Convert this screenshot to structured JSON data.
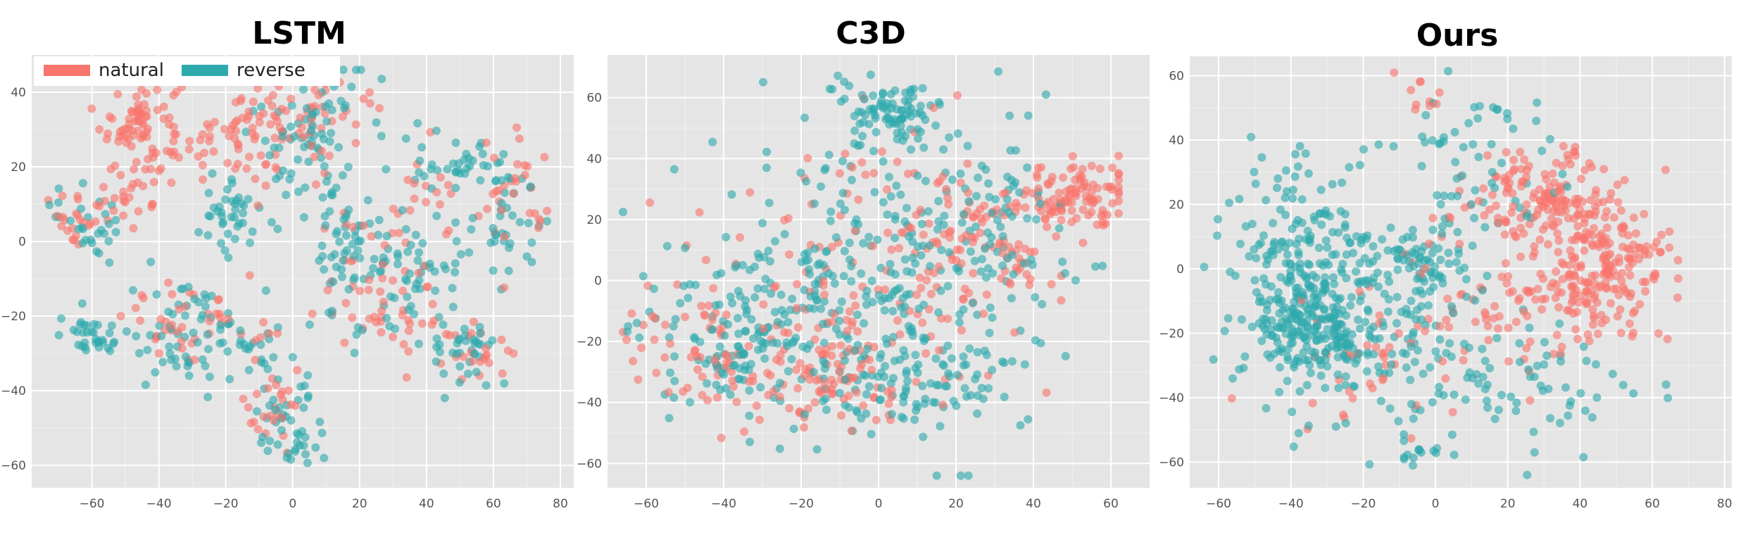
{
  "colors": {
    "natural": "#F8766D",
    "reverse": "#2EAAAD",
    "panel_background": "#E5E5E5",
    "grid": "#FFFFFF"
  },
  "legend": {
    "placement": "top-left of first panel",
    "entries": [
      {
        "label": "natural",
        "color": "#F8766D"
      },
      {
        "label": "reverse",
        "color": "#2EAAAD"
      }
    ]
  },
  "chart_data": [
    {
      "type": "scatter",
      "title": "LSTM",
      "xlabel": "",
      "ylabel": "",
      "xlim": [
        -78,
        84
      ],
      "ylim": [
        -66,
        50
      ],
      "xticks": [
        -60,
        -40,
        -20,
        0,
        20,
        40,
        60,
        80
      ],
      "yticks": [
        -60,
        -40,
        -20,
        0,
        20,
        40
      ],
      "grid": true,
      "series": [
        {
          "name": "natural",
          "color": "#F8766D",
          "clusters": [
            {
              "cx": -45,
              "cy": 32,
              "sx": 6,
              "sy": 6,
              "n": 70
            },
            {
              "cx": -15,
              "cy": 28,
              "sx": 10,
              "sy": 6,
              "n": 70
            },
            {
              "cx": 5,
              "cy": 38,
              "sx": 10,
              "sy": 6,
              "n": 50
            },
            {
              "cx": -62,
              "cy": 5,
              "sx": 6,
              "sy": 4,
              "n": 25
            },
            {
              "cx": -48,
              "cy": 15,
              "sx": 5,
              "sy": 5,
              "n": 30
            },
            {
              "cx": -30,
              "cy": -22,
              "sx": 10,
              "sy": 6,
              "n": 45
            },
            {
              "cx": 30,
              "cy": -12,
              "sx": 12,
              "sy": 10,
              "n": 60
            },
            {
              "cx": 55,
              "cy": -30,
              "sx": 5,
              "sy": 4,
              "n": 20
            },
            {
              "cx": 65,
              "cy": 10,
              "sx": 6,
              "sy": 8,
              "n": 30
            },
            {
              "cx": -5,
              "cy": -45,
              "sx": 5,
              "sy": 6,
              "n": 25
            },
            {
              "cx": 40,
              "cy": 10,
              "sx": 6,
              "sy": 8,
              "n": 20
            }
          ]
        },
        {
          "name": "reverse",
          "color": "#2EAAAD",
          "clusters": [
            {
              "cx": 5,
              "cy": 30,
              "sx": 8,
              "sy": 12,
              "n": 80
            },
            {
              "cx": -20,
              "cy": 8,
              "sx": 6,
              "sy": 5,
              "n": 40
            },
            {
              "cx": -60,
              "cy": 5,
              "sx": 6,
              "sy": 5,
              "n": 30
            },
            {
              "cx": -60,
              "cy": -25,
              "sx": 5,
              "sy": 3,
              "n": 35
            },
            {
              "cx": -30,
              "cy": -25,
              "sx": 10,
              "sy": 8,
              "n": 60
            },
            {
              "cx": 0,
              "cy": -50,
              "sx": 5,
              "sy": 6,
              "n": 45
            },
            {
              "cx": 30,
              "cy": -10,
              "sx": 12,
              "sy": 10,
              "n": 90
            },
            {
              "cx": 52,
              "cy": -30,
              "sx": 5,
              "sy": 4,
              "n": 35
            },
            {
              "cx": 50,
              "cy": 20,
              "sx": 8,
              "sy": 4,
              "n": 40
            },
            {
              "cx": 65,
              "cy": 5,
              "sx": 6,
              "sy": 8,
              "n": 35
            },
            {
              "cx": 15,
              "cy": 0,
              "sx": 5,
              "sy": 6,
              "n": 25
            },
            {
              "cx": -10,
              "cy": -30,
              "sx": 4,
              "sy": 5,
              "n": 20
            }
          ]
        }
      ]
    },
    {
      "type": "scatter",
      "title": "C3D",
      "xlabel": "",
      "ylabel": "",
      "xlim": [
        -70,
        70
      ],
      "ylim": [
        -68,
        74
      ],
      "xticks": [
        -60,
        -40,
        -20,
        0,
        20,
        40,
        60
      ],
      "yticks": [
        -60,
        -40,
        -20,
        0,
        20,
        40,
        60
      ],
      "grid": true,
      "series": [
        {
          "name": "natural",
          "color": "#F8766D",
          "clusters": [
            {
              "cx": 50,
              "cy": 28,
              "sx": 8,
              "sy": 6,
              "n": 110
            },
            {
              "cx": 30,
              "cy": 10,
              "sx": 10,
              "sy": 10,
              "n": 60
            },
            {
              "cx": -15,
              "cy": -30,
              "sx": 12,
              "sy": 10,
              "n": 90
            },
            {
              "cx": 0,
              "cy": 5,
              "sx": 22,
              "sy": 22,
              "n": 140
            },
            {
              "cx": -45,
              "cy": -20,
              "sx": 10,
              "sy": 10,
              "n": 60
            }
          ]
        },
        {
          "name": "reverse",
          "color": "#2EAAAD",
          "clusters": [
            {
              "cx": 0,
              "cy": 55,
              "sx": 8,
              "sy": 5,
              "n": 90
            },
            {
              "cx": -35,
              "cy": -20,
              "sx": 14,
              "sy": 12,
              "n": 140
            },
            {
              "cx": 0,
              "cy": 0,
              "sx": 22,
              "sy": 24,
              "n": 260
            },
            {
              "cx": 10,
              "cy": -35,
              "sx": 12,
              "sy": 8,
              "n": 80
            },
            {
              "cx": 30,
              "cy": 20,
              "sx": 12,
              "sy": 12,
              "n": 60
            }
          ]
        }
      ]
    },
    {
      "type": "scatter",
      "title": "Ours",
      "xlabel": "",
      "ylabel": "",
      "xlim": [
        -68,
        82
      ],
      "ylim": [
        -68,
        66
      ],
      "xticks": [
        -60,
        -40,
        -20,
        0,
        20,
        40,
        60,
        80
      ],
      "yticks": [
        -60,
        -40,
        -20,
        0,
        20,
        40,
        60
      ],
      "grid": true,
      "series": [
        {
          "name": "natural",
          "color": "#F8766D",
          "clusters": [
            {
              "cx": 45,
              "cy": 0,
              "sx": 10,
              "sy": 12,
              "n": 230
            },
            {
              "cx": 30,
              "cy": 22,
              "sx": 10,
              "sy": 8,
              "n": 130
            },
            {
              "cx": 15,
              "cy": -10,
              "sx": 12,
              "sy": 14,
              "n": 60
            },
            {
              "cx": -5,
              "cy": 55,
              "sx": 3,
              "sy": 3,
              "n": 10
            },
            {
              "cx": -20,
              "cy": -30,
              "sx": 14,
              "sy": 12,
              "n": 40
            }
          ]
        },
        {
          "name": "reverse",
          "color": "#2EAAAD",
          "clusters": [
            {
              "cx": -38,
              "cy": 0,
              "sx": 10,
              "sy": 16,
              "n": 220
            },
            {
              "cx": -33,
              "cy": -20,
              "sx": 10,
              "sy": 8,
              "n": 160
            },
            {
              "cx": -5,
              "cy": 3,
              "sx": 8,
              "sy": 6,
              "n": 80
            },
            {
              "cx": -10,
              "cy": -25,
              "sx": 16,
              "sy": 14,
              "n": 110
            },
            {
              "cx": 10,
              "cy": 35,
              "sx": 12,
              "sy": 12,
              "n": 60
            },
            {
              "cx": 30,
              "cy": -35,
              "sx": 16,
              "sy": 10,
              "n": 50
            },
            {
              "cx": -5,
              "cy": -58,
              "sx": 3,
              "sy": 2,
              "n": 12
            }
          ]
        }
      ]
    }
  ]
}
